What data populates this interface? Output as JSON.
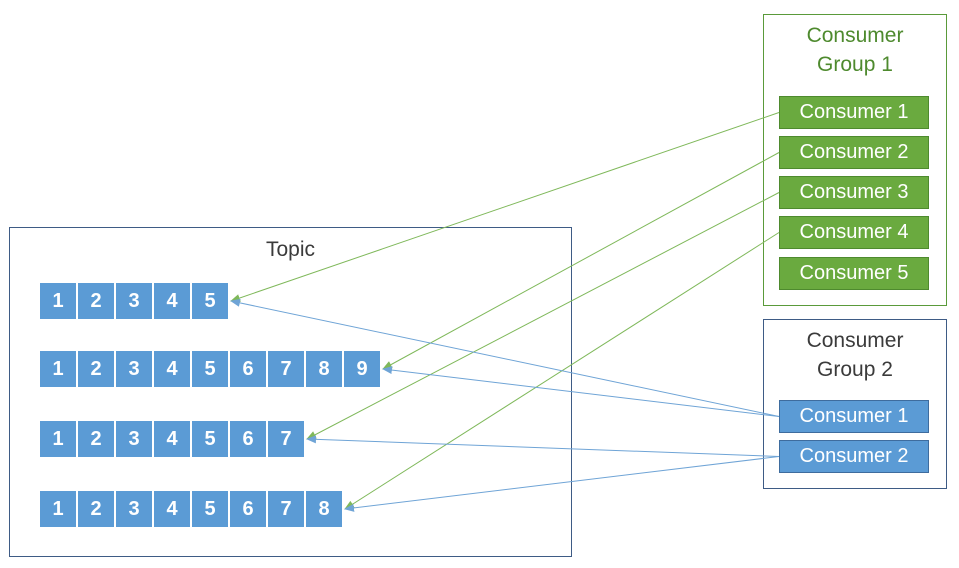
{
  "topic": {
    "title": "Topic",
    "partitions": [
      [
        "1",
        "2",
        "3",
        "4",
        "5"
      ],
      [
        "1",
        "2",
        "3",
        "4",
        "5",
        "6",
        "7",
        "8",
        "9"
      ],
      [
        "1",
        "2",
        "3",
        "4",
        "5",
        "6",
        "7"
      ],
      [
        "1",
        "2",
        "3",
        "4",
        "5",
        "6",
        "7",
        "8"
      ]
    ]
  },
  "consumer_group_1": {
    "title_line1": "Consumer",
    "title_line2": "Group 1",
    "consumers": [
      "Consumer 1",
      "Consumer 2",
      "Consumer 3",
      "Consumer 4",
      "Consumer 5"
    ]
  },
  "consumer_group_2": {
    "title_line1": "Consumer",
    "title_line2": "Group 2",
    "consumers": [
      "Consumer 1",
      "Consumer 2"
    ]
  },
  "links": [
    {
      "group": 1,
      "consumer": 0,
      "partition": 0
    },
    {
      "group": 1,
      "consumer": 1,
      "partition": 1
    },
    {
      "group": 1,
      "consumer": 2,
      "partition": 2
    },
    {
      "group": 1,
      "consumer": 3,
      "partition": 3
    },
    {
      "group": 2,
      "consumer": 0,
      "partition": 0
    },
    {
      "group": 2,
      "consumer": 0,
      "partition": 1
    },
    {
      "group": 2,
      "consumer": 1,
      "partition": 2
    },
    {
      "group": 2,
      "consumer": 1,
      "partition": 3
    }
  ],
  "colors": {
    "cell": "#5b9bd5",
    "group1": "#6aaa3f",
    "group2": "#5b9bd5",
    "group1_line": "#7fb85a",
    "group2_line": "#6fa4d6"
  }
}
